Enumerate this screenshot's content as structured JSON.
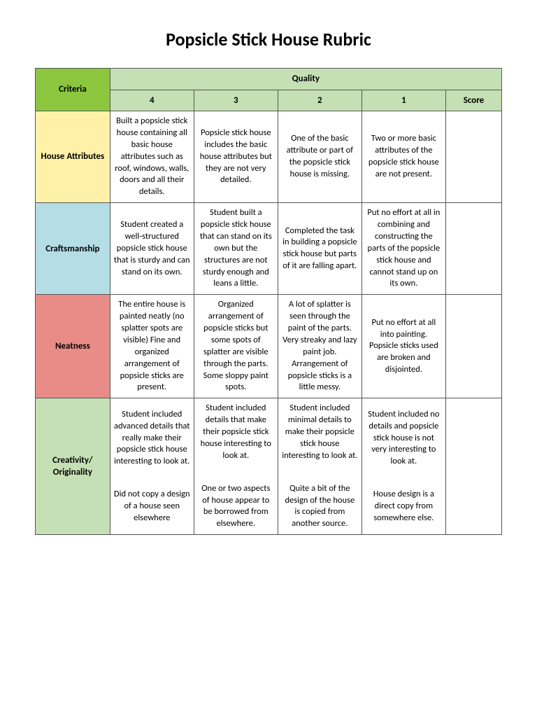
{
  "title": "Popsicle Stick House Rubric",
  "headers": {
    "criteria": "Criteria",
    "quality": "Quality",
    "score": "Score",
    "levels": [
      "4",
      "3",
      "2",
      "1"
    ]
  },
  "colors": {
    "criteria_hdr": "#8cc63f",
    "quality_hdr": "#c5e0b4",
    "row0": "#fff2a8",
    "row1": "#b4dde6",
    "row2": "#e98b87",
    "row3": "#c5e0b4"
  },
  "rows": [
    {
      "label": "House Attributes",
      "cells": [
        "Built a popsicle stick house containing all basic house attributes such as roof, windows, walls, doors and all their details.",
        "Popsicle stick house includes the basic house attributes but they are not very detailed.",
        "One of the basic attribute or part of the popsicle stick house is missing.",
        "Two or more basic attributes of the popsicle stick house are not present."
      ]
    },
    {
      "label": "Craftsmanship",
      "cells": [
        "Student created a well-structured popsicle stick house that is sturdy and can stand on its own.",
        "Student built a popsicle stick house that can stand on its own but the structures are not sturdy enough and leans a little.",
        "Completed the task in building a popsicle stick house but parts of it are falling apart.",
        "Put no effort at all in combining and constructing the parts of the popsicle stick house and cannot stand up on its own."
      ]
    },
    {
      "label": "Neatness",
      "cells": [
        "The entire house is painted neatly (no splatter spots are visible) Fine and organized arrangement of popsicle sticks are present.",
        "Organized arrangement of popsicle sticks but some spots of splatter are visible through the parts. Some sloppy paint spots.",
        "A lot of splatter is seen through the paint of the parts. Very streaky and lazy paint job. Arrangement of popsicle sticks is a little messy.",
        "Put no effort at all into painting. Popsicle sticks used are broken and disjointed."
      ]
    },
    {
      "label": "Creativity/ Originality",
      "cells_multi": [
        [
          "Student included advanced details that really make their popsicle stick house interesting to look at.",
          "Did not copy a design of a house seen elsewhere"
        ],
        [
          "Student included details that make their popsicle stick house interesting to look at.",
          "One or two aspects of house appear to be borrowed from elsewhere."
        ],
        [
          "Student included minimal details to make their popsicle stick house interesting to look at.",
          "Quite a bit of the design of the house is copied from another source."
        ],
        [
          "Student included no details and popsicle stick house is not very interesting to look at.",
          "House design is a direct copy from somewhere else."
        ]
      ]
    }
  ]
}
